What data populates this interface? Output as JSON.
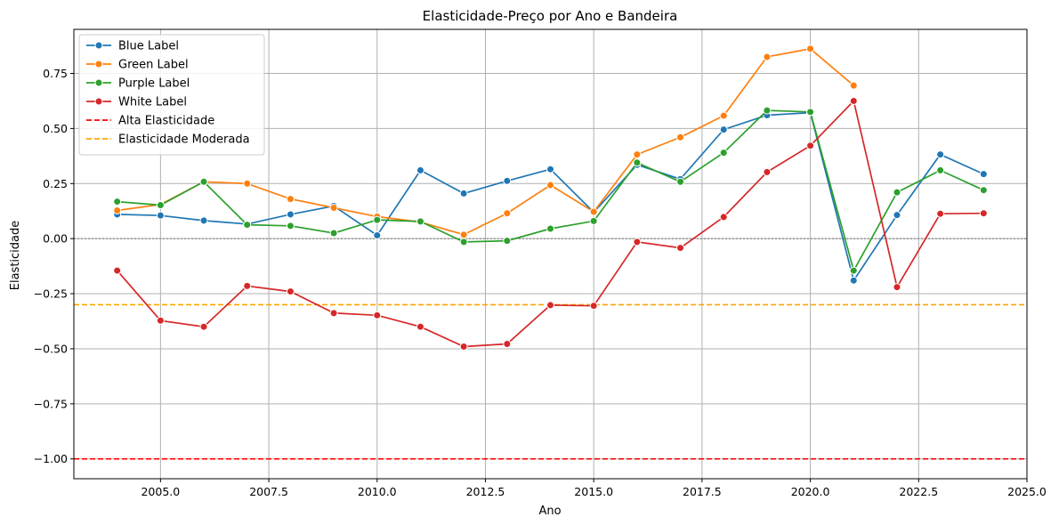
{
  "chart_data": {
    "type": "line",
    "title": "Elasticidade-Preço por Ano e Bandeira",
    "xlabel": "Ano",
    "ylabel": "Elasticidade",
    "xlim": [
      2003.0,
      2025.0
    ],
    "ylim": [
      -1.09,
      0.95
    ],
    "xticks": [
      2005.0,
      2007.5,
      2010.0,
      2012.5,
      2015.0,
      2017.5,
      2020.0,
      2022.5,
      2025.0
    ],
    "xtick_labels": [
      "2005.0",
      "2007.5",
      "2010.0",
      "2012.5",
      "2015.0",
      "2017.5",
      "2020.0",
      "2022.5",
      "2025.0"
    ],
    "yticks": [
      0.75,
      0.5,
      0.25,
      0.0,
      -0.25,
      -0.5,
      -0.75,
      -1.0
    ],
    "ytick_labels": [
      "0.75",
      "0.50",
      "0.25",
      "0.00",
      "−0.25",
      "−0.50",
      "−0.75",
      "−1.00"
    ],
    "grid": true,
    "legend_position": "top-left",
    "series": [
      {
        "name": "Blue Label",
        "color": "#1f77b4",
        "x": [
          2004,
          2005,
          2006,
          2007,
          2008,
          2009,
          2010,
          2011,
          2012,
          2013,
          2014,
          2015,
          2016,
          2017,
          2018,
          2019,
          2020,
          2021,
          2022,
          2023,
          2024
        ],
        "values": [
          0.11,
          0.105,
          0.082,
          0.066,
          0.11,
          0.148,
          0.015,
          0.31,
          0.205,
          0.262,
          0.315,
          0.12,
          0.335,
          0.27,
          0.495,
          0.56,
          0.572,
          -0.19,
          0.107,
          0.382,
          0.293
        ]
      },
      {
        "name": "Green Label",
        "color": "#ff7f0e",
        "x": [
          2004,
          2005,
          2006,
          2007,
          2008,
          2009,
          2010,
          2011,
          2012,
          2013,
          2014,
          2015,
          2016,
          2017,
          2018,
          2019,
          2020,
          2021
        ],
        "values": [
          0.128,
          0.155,
          0.258,
          0.25,
          0.18,
          0.14,
          0.1,
          0.075,
          0.018,
          0.115,
          0.243,
          0.122,
          0.382,
          0.46,
          0.558,
          0.825,
          0.862,
          0.695
        ]
      },
      {
        "name": "Purple Label",
        "color": "#2ca02c",
        "x": [
          2004,
          2005,
          2006,
          2007,
          2008,
          2009,
          2010,
          2011,
          2012,
          2013,
          2014,
          2015,
          2016,
          2017,
          2018,
          2019,
          2020,
          2021,
          2022,
          2023,
          2024
        ],
        "values": [
          0.168,
          0.152,
          0.258,
          0.063,
          0.058,
          0.025,
          0.085,
          0.078,
          -0.015,
          -0.01,
          0.045,
          0.08,
          0.345,
          0.258,
          0.39,
          0.582,
          0.575,
          -0.145,
          0.21,
          0.31,
          0.22
        ]
      },
      {
        "name": "White Label",
        "color": "#d62728",
        "x": [
          2004,
          2005,
          2006,
          2007,
          2008,
          2009,
          2010,
          2011,
          2012,
          2013,
          2014,
          2015,
          2016,
          2017,
          2018,
          2019,
          2020,
          2021,
          2022,
          2023,
          2024
        ],
        "values": [
          -0.145,
          -0.372,
          -0.4,
          -0.215,
          -0.24,
          -0.338,
          -0.348,
          -0.4,
          -0.49,
          -0.478,
          -0.302,
          -0.305,
          -0.015,
          -0.042,
          0.098,
          0.302,
          0.422,
          0.625,
          -0.22,
          0.113,
          0.115
        ]
      }
    ],
    "reference_lines": [
      {
        "name": "Alta Elasticidade",
        "y": -1.0,
        "color": "#ff0000",
        "style": "dashed"
      },
      {
        "name": "Elasticidade Moderada",
        "y": -0.3,
        "color": "#ffa500",
        "style": "dashed"
      },
      {
        "name": "",
        "y": 0.0,
        "color": "#808080",
        "style": "dotted"
      }
    ]
  }
}
